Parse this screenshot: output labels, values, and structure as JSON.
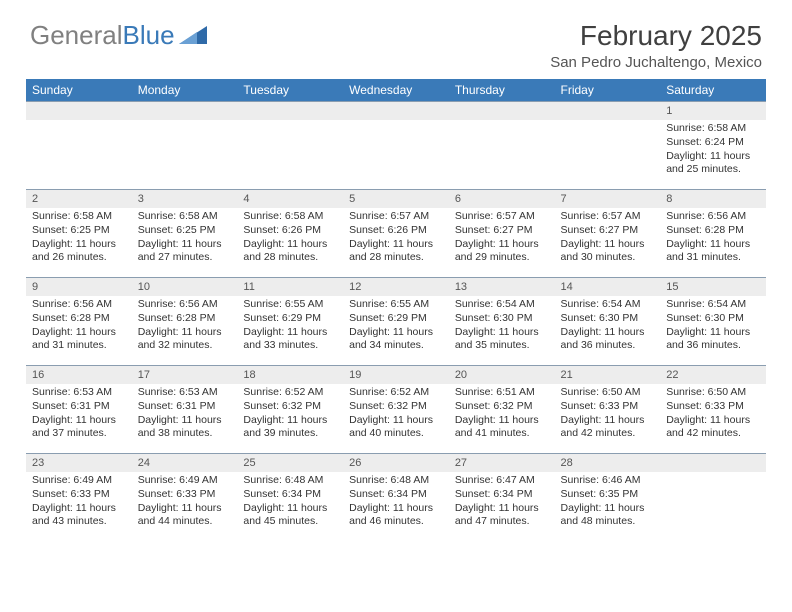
{
  "logo": {
    "text1": "General",
    "text2": "Blue"
  },
  "title": "February 2025",
  "location": "San Pedro Juchaltengo, Mexico",
  "colors": {
    "header_bg": "#3a7ab8",
    "header_text": "#ffffff",
    "daynum_bg": "#ededed",
    "border": "#8a9db0",
    "body_text": "#333333"
  },
  "day_headers": [
    "Sunday",
    "Monday",
    "Tuesday",
    "Wednesday",
    "Thursday",
    "Friday",
    "Saturday"
  ],
  "weeks": [
    [
      {
        "n": "",
        "sr": "",
        "ss": "",
        "dl": ""
      },
      {
        "n": "",
        "sr": "",
        "ss": "",
        "dl": ""
      },
      {
        "n": "",
        "sr": "",
        "ss": "",
        "dl": ""
      },
      {
        "n": "",
        "sr": "",
        "ss": "",
        "dl": ""
      },
      {
        "n": "",
        "sr": "",
        "ss": "",
        "dl": ""
      },
      {
        "n": "",
        "sr": "",
        "ss": "",
        "dl": ""
      },
      {
        "n": "1",
        "sr": "Sunrise: 6:58 AM",
        "ss": "Sunset: 6:24 PM",
        "dl": "Daylight: 11 hours and 25 minutes."
      }
    ],
    [
      {
        "n": "2",
        "sr": "Sunrise: 6:58 AM",
        "ss": "Sunset: 6:25 PM",
        "dl": "Daylight: 11 hours and 26 minutes."
      },
      {
        "n": "3",
        "sr": "Sunrise: 6:58 AM",
        "ss": "Sunset: 6:25 PM",
        "dl": "Daylight: 11 hours and 27 minutes."
      },
      {
        "n": "4",
        "sr": "Sunrise: 6:58 AM",
        "ss": "Sunset: 6:26 PM",
        "dl": "Daylight: 11 hours and 28 minutes."
      },
      {
        "n": "5",
        "sr": "Sunrise: 6:57 AM",
        "ss": "Sunset: 6:26 PM",
        "dl": "Daylight: 11 hours and 28 minutes."
      },
      {
        "n": "6",
        "sr": "Sunrise: 6:57 AM",
        "ss": "Sunset: 6:27 PM",
        "dl": "Daylight: 11 hours and 29 minutes."
      },
      {
        "n": "7",
        "sr": "Sunrise: 6:57 AM",
        "ss": "Sunset: 6:27 PM",
        "dl": "Daylight: 11 hours and 30 minutes."
      },
      {
        "n": "8",
        "sr": "Sunrise: 6:56 AM",
        "ss": "Sunset: 6:28 PM",
        "dl": "Daylight: 11 hours and 31 minutes."
      }
    ],
    [
      {
        "n": "9",
        "sr": "Sunrise: 6:56 AM",
        "ss": "Sunset: 6:28 PM",
        "dl": "Daylight: 11 hours and 31 minutes."
      },
      {
        "n": "10",
        "sr": "Sunrise: 6:56 AM",
        "ss": "Sunset: 6:28 PM",
        "dl": "Daylight: 11 hours and 32 minutes."
      },
      {
        "n": "11",
        "sr": "Sunrise: 6:55 AM",
        "ss": "Sunset: 6:29 PM",
        "dl": "Daylight: 11 hours and 33 minutes."
      },
      {
        "n": "12",
        "sr": "Sunrise: 6:55 AM",
        "ss": "Sunset: 6:29 PM",
        "dl": "Daylight: 11 hours and 34 minutes."
      },
      {
        "n": "13",
        "sr": "Sunrise: 6:54 AM",
        "ss": "Sunset: 6:30 PM",
        "dl": "Daylight: 11 hours and 35 minutes."
      },
      {
        "n": "14",
        "sr": "Sunrise: 6:54 AM",
        "ss": "Sunset: 6:30 PM",
        "dl": "Daylight: 11 hours and 36 minutes."
      },
      {
        "n": "15",
        "sr": "Sunrise: 6:54 AM",
        "ss": "Sunset: 6:30 PM",
        "dl": "Daylight: 11 hours and 36 minutes."
      }
    ],
    [
      {
        "n": "16",
        "sr": "Sunrise: 6:53 AM",
        "ss": "Sunset: 6:31 PM",
        "dl": "Daylight: 11 hours and 37 minutes."
      },
      {
        "n": "17",
        "sr": "Sunrise: 6:53 AM",
        "ss": "Sunset: 6:31 PM",
        "dl": "Daylight: 11 hours and 38 minutes."
      },
      {
        "n": "18",
        "sr": "Sunrise: 6:52 AM",
        "ss": "Sunset: 6:32 PM",
        "dl": "Daylight: 11 hours and 39 minutes."
      },
      {
        "n": "19",
        "sr": "Sunrise: 6:52 AM",
        "ss": "Sunset: 6:32 PM",
        "dl": "Daylight: 11 hours and 40 minutes."
      },
      {
        "n": "20",
        "sr": "Sunrise: 6:51 AM",
        "ss": "Sunset: 6:32 PM",
        "dl": "Daylight: 11 hours and 41 minutes."
      },
      {
        "n": "21",
        "sr": "Sunrise: 6:50 AM",
        "ss": "Sunset: 6:33 PM",
        "dl": "Daylight: 11 hours and 42 minutes."
      },
      {
        "n": "22",
        "sr": "Sunrise: 6:50 AM",
        "ss": "Sunset: 6:33 PM",
        "dl": "Daylight: 11 hours and 42 minutes."
      }
    ],
    [
      {
        "n": "23",
        "sr": "Sunrise: 6:49 AM",
        "ss": "Sunset: 6:33 PM",
        "dl": "Daylight: 11 hours and 43 minutes."
      },
      {
        "n": "24",
        "sr": "Sunrise: 6:49 AM",
        "ss": "Sunset: 6:33 PM",
        "dl": "Daylight: 11 hours and 44 minutes."
      },
      {
        "n": "25",
        "sr": "Sunrise: 6:48 AM",
        "ss": "Sunset: 6:34 PM",
        "dl": "Daylight: 11 hours and 45 minutes."
      },
      {
        "n": "26",
        "sr": "Sunrise: 6:48 AM",
        "ss": "Sunset: 6:34 PM",
        "dl": "Daylight: 11 hours and 46 minutes."
      },
      {
        "n": "27",
        "sr": "Sunrise: 6:47 AM",
        "ss": "Sunset: 6:34 PM",
        "dl": "Daylight: 11 hours and 47 minutes."
      },
      {
        "n": "28",
        "sr": "Sunrise: 6:46 AM",
        "ss": "Sunset: 6:35 PM",
        "dl": "Daylight: 11 hours and 48 minutes."
      },
      {
        "n": "",
        "sr": "",
        "ss": "",
        "dl": ""
      }
    ]
  ]
}
